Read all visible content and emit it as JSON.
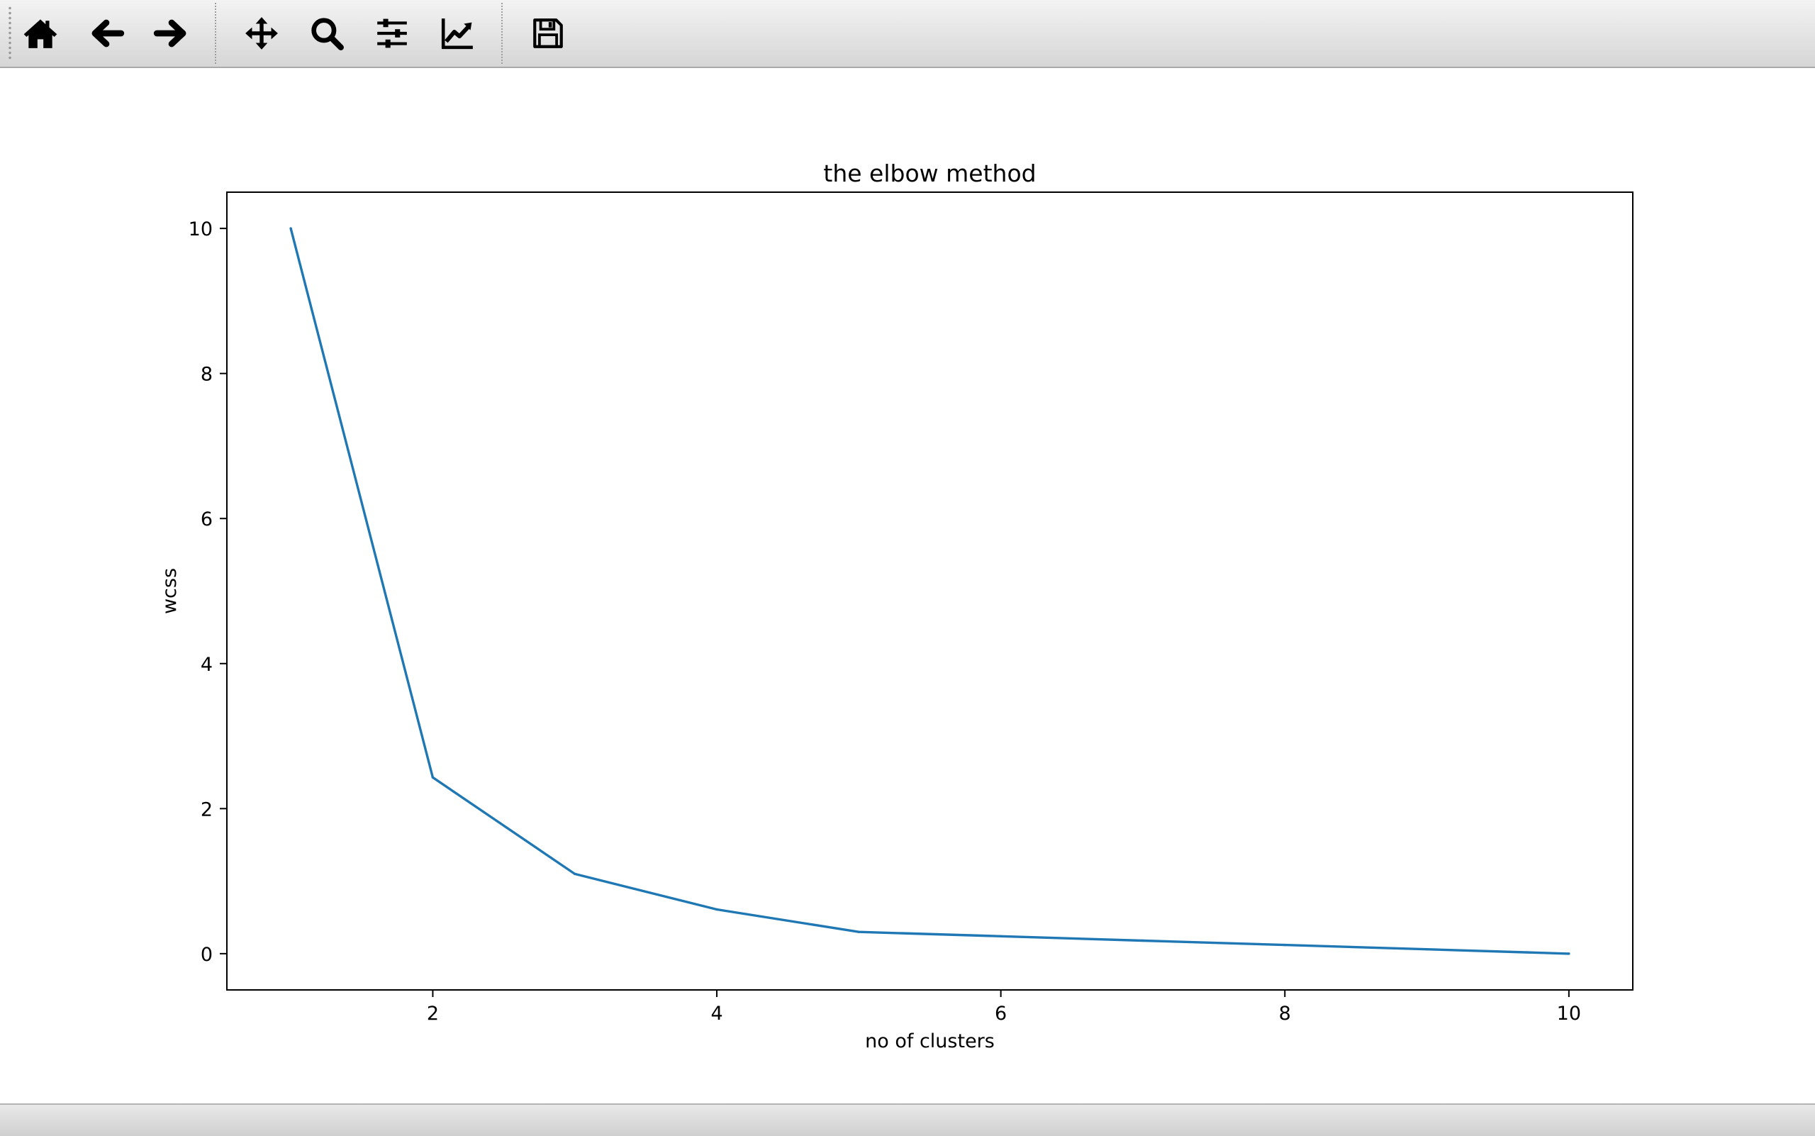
{
  "toolbar": {
    "buttons": [
      {
        "name": "home-button",
        "icon": "home-icon"
      },
      {
        "name": "back-button",
        "icon": "arrow-left-icon"
      },
      {
        "name": "forward-button",
        "icon": "arrow-right-icon"
      },
      {
        "name": "pan-button",
        "icon": "move-arrows-icon"
      },
      {
        "name": "zoom-button",
        "icon": "magnifier-icon"
      },
      {
        "name": "configure-subplots-button",
        "icon": "sliders-icon"
      },
      {
        "name": "edit-axis-button",
        "icon": "line-chart-icon"
      },
      {
        "name": "save-button",
        "icon": "floppy-disk-icon"
      }
    ]
  },
  "colors": {
    "line": "#1f77b4",
    "axes": "#000000",
    "background": "#ffffff"
  },
  "chart_data": {
    "type": "line",
    "title": "the elbow method",
    "xlabel": "no of clusters",
    "ylabel": "wcss",
    "xlim": [
      0.55,
      10.45
    ],
    "ylim": [
      -0.5,
      10.5
    ],
    "xticks": [
      2,
      4,
      6,
      8,
      10
    ],
    "xtick_labels": [
      "2",
      "4",
      "6",
      "8",
      "10"
    ],
    "yticks": [
      0,
      2,
      4,
      6,
      8,
      10
    ],
    "ytick_labels": [
      "0",
      "2",
      "4",
      "6",
      "8",
      "10"
    ],
    "grid": false,
    "series": [
      {
        "x": [
          1,
          2,
          3,
          4,
          5,
          6,
          7,
          8,
          9,
          10
        ],
        "values": [
          10.0,
          2.43,
          1.1,
          0.61,
          0.3,
          0.24,
          0.18,
          0.12,
          0.06,
          0.0
        ]
      }
    ]
  }
}
